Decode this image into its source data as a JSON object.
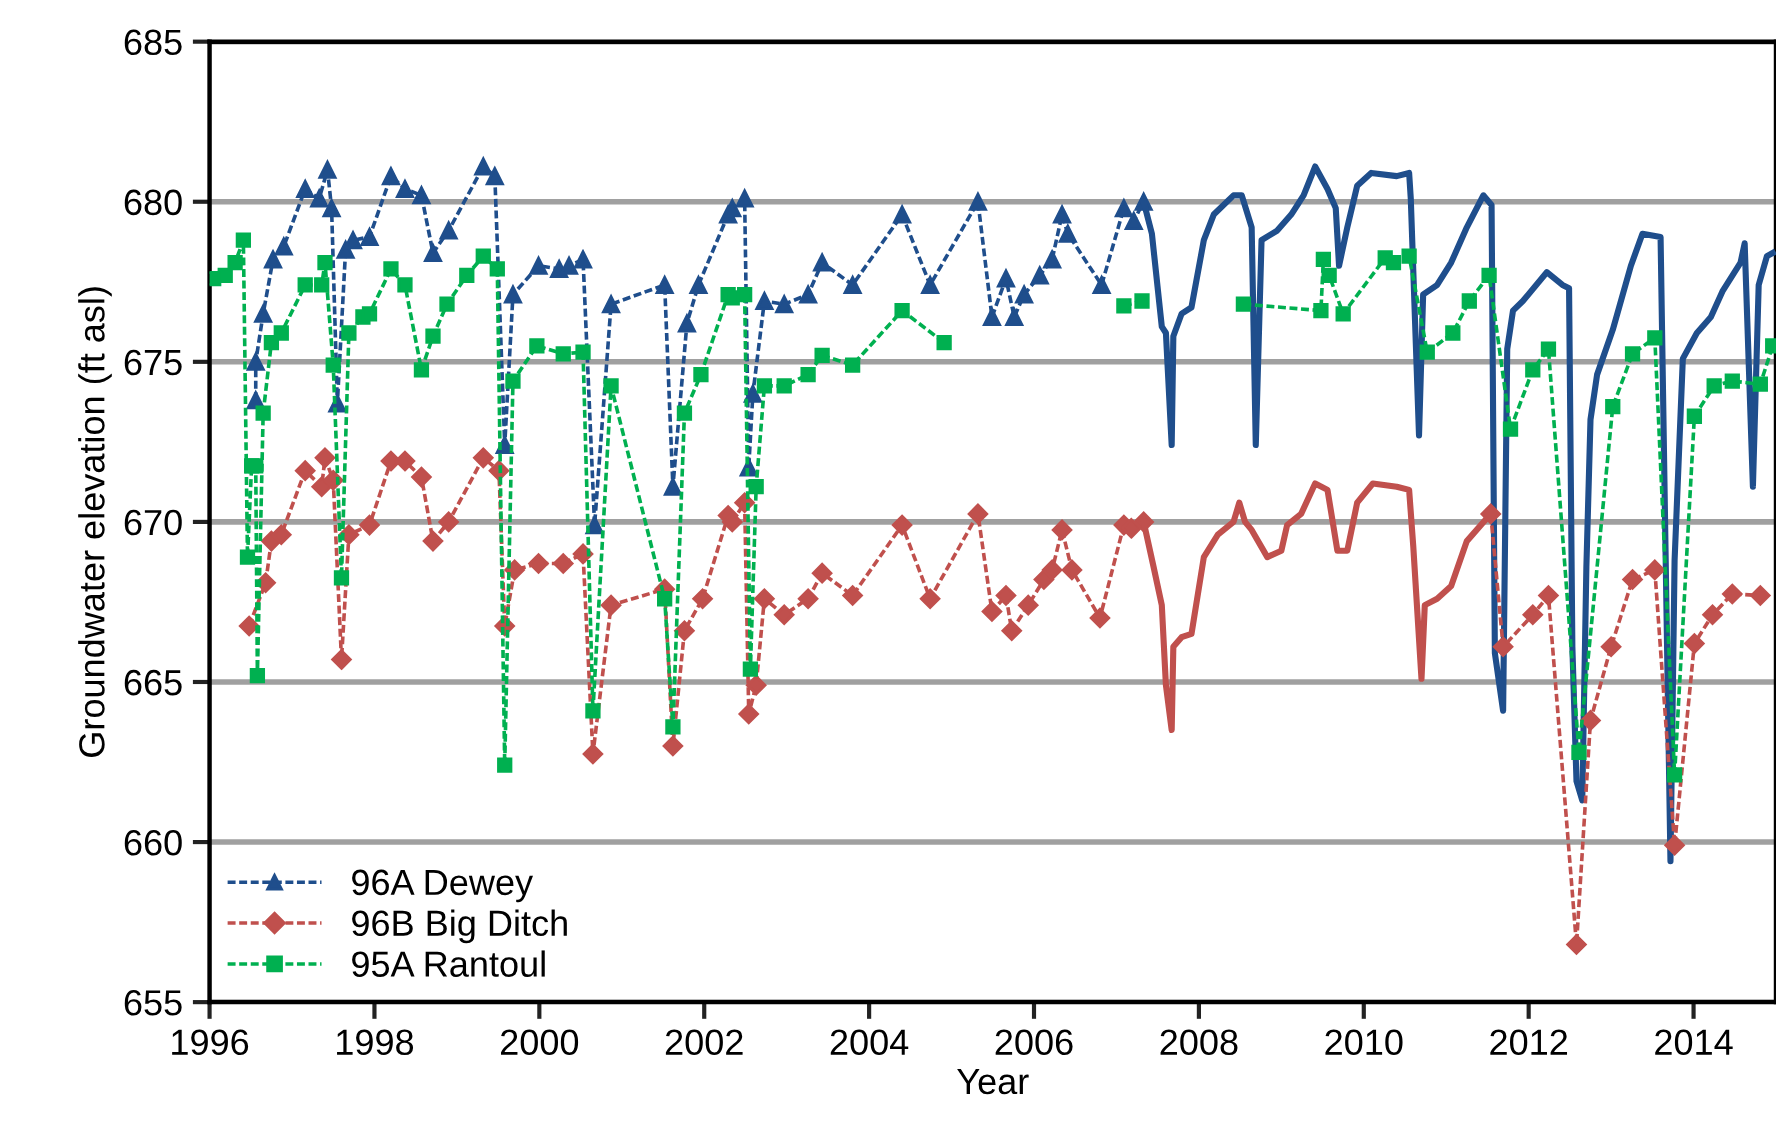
{
  "chart_data": {
    "type": "line",
    "xlabel": "Year",
    "ylabel": "Groundwater elevation (ft asl)",
    "xlim": [
      1996,
      2015
    ],
    "xticks": [
      1996,
      1998,
      2000,
      2002,
      2004,
      2006,
      2008,
      2010,
      2012,
      2014
    ],
    "ylim": [
      655,
      685
    ],
    "yticks": [
      655,
      660,
      665,
      670,
      675,
      680,
      685
    ],
    "grid": "y",
    "legend": "bottom left",
    "series": [
      {
        "name": "96A Dewey",
        "color": "#1f4e8c",
        "line_style": "dashed",
        "marker": "triangle",
        "x": [
          1996.56,
          1996.56,
          1996.65,
          1996.77,
          1996.9,
          1997.16,
          1997.33,
          1997.43,
          1997.48,
          1997.55,
          1997.65,
          1997.74,
          1997.94,
          1998.2,
          1998.37,
          1998.57,
          1998.71,
          1998.9,
          1999.32,
          1999.46,
          1999.58,
          1999.68,
          1999.99,
          2000.24,
          2000.36,
          2000.53,
          2000.67,
          2000.87,
          2001.52,
          2001.62,
          2001.79,
          2001.93,
          2002.29,
          2002.34,
          2002.49,
          2002.54,
          2002.59,
          2002.73,
          2002.97,
          2003.26,
          2003.43,
          2003.8,
          2004.4,
          2004.74,
          2005.32,
          2005.49,
          2005.66,
          2005.76,
          2005.88,
          2006.07,
          2006.22,
          2006.34,
          2006.41,
          2006.82,
          2007.09,
          2007.21,
          2007.33
        ],
        "values": [
          673.8,
          675,
          676.5,
          678.2,
          678.6,
          680.4,
          680.1,
          681,
          679.8,
          673.7,
          678.5,
          678.8,
          678.9,
          680.8,
          680.4,
          680.2,
          678.4,
          679.1,
          681.1,
          680.8,
          672.4,
          677.1,
          678,
          677.9,
          678,
          678.2,
          669.9,
          676.8,
          677.4,
          671.1,
          676.2,
          677.4,
          679.6,
          679.8,
          680.1,
          671.7,
          674,
          676.9,
          676.8,
          677.1,
          678.1,
          677.4,
          679.6,
          677.4,
          680,
          676.4,
          677.6,
          676.4,
          677.1,
          677.7,
          678.2,
          679.6,
          679,
          677.4,
          679.8,
          679.4,
          680
        ]
      },
      {
        "color": "#1f4e8c",
        "line_style": "solid",
        "marker": "none",
        "x": [
          2007.33,
          2007.43,
          2007.55,
          2007.6,
          2007.67,
          2007.69,
          2007.79,
          2007.91,
          2008.06,
          2008.18,
          2008.42,
          2008.52,
          2008.64,
          2008.69,
          2008.76,
          2008.95,
          2009.12,
          2009.27,
          2009.41,
          2009.56,
          2009.66,
          2009.7,
          2009.8,
          2009.92,
          2010.09,
          2010.4,
          2010.55,
          2010.57,
          2010.67,
          2010.72,
          2010.89,
          2011.06,
          2011.25,
          2011.45,
          2011.55,
          2011.59,
          2011.69,
          2011.74,
          2011.81,
          2011.93,
          2012.22,
          2012.41,
          2012.49,
          2012.53,
          2012.58,
          2012.65,
          2012.7,
          2012.75,
          2012.83,
          2013.02,
          2013.24,
          2013.38,
          2013.6,
          2013.63,
          2013.72,
          2013.77,
          2013.87,
          2014.04,
          2014.21,
          2014.35,
          2014.57,
          2014.62,
          2014.72,
          2014.79,
          2014.89,
          2014.96
        ],
        "values": [
          680,
          679,
          676.1,
          675.9,
          672.4,
          675.8,
          676.5,
          676.7,
          678.8,
          679.6,
          680.2,
          680.2,
          679.2,
          672.4,
          678.8,
          679.1,
          679.6,
          680.2,
          681.1,
          680.4,
          679.8,
          678,
          679.2,
          680.5,
          680.9,
          680.8,
          680.9,
          680.1,
          672.7,
          677.1,
          677.4,
          678.1,
          679.2,
          680.2,
          679.9,
          665.9,
          664.1,
          675.4,
          676.6,
          676.9,
          677.8,
          677.4,
          677.3,
          666.1,
          661.9,
          661.3,
          668.6,
          673.2,
          674.6,
          676,
          678,
          679,
          678.9,
          674,
          659.4,
          668.8,
          675.1,
          675.9,
          676.4,
          677.2,
          678.1,
          678.7,
          671.1,
          677.4,
          678.3,
          678.4
        ]
      },
      {
        "name": "96B Big Ditch",
        "color": "#c0504d",
        "line_style": "dashed",
        "marker": "diamond",
        "x": [
          1996.48,
          1996.68,
          1996.75,
          1996.87,
          1997.16,
          1997.36,
          1997.4,
          1997.5,
          1997.6,
          1997.69,
          1997.94,
          1998.2,
          1998.37,
          1998.57,
          1998.71,
          1998.9,
          1999.32,
          1999.51,
          1999.58,
          1999.7,
          1999.99,
          2000.29,
          2000.53,
          2000.65,
          2000.87,
          2001.52,
          2001.62,
          2001.76,
          2001.98,
          2002.29,
          2002.34,
          2002.49,
          2002.54,
          2002.63,
          2002.73,
          2002.97,
          2003.26,
          2003.43,
          2003.8,
          2004.4,
          2004.74,
          2005.32,
          2005.49,
          2005.66,
          2005.73,
          2005.93,
          2006.12,
          2006.22,
          2006.34,
          2006.46,
          2006.8,
          2007.09,
          2007.18,
          2007.33
        ],
        "values": [
          666.75,
          668.1,
          669.4,
          669.6,
          671.6,
          671.1,
          672,
          671.3,
          665.7,
          669.6,
          669.9,
          671.9,
          671.9,
          671.4,
          669.4,
          670,
          672,
          671.6,
          666.75,
          668.5,
          668.7,
          668.7,
          669,
          662.75,
          667.4,
          667.9,
          663,
          666.6,
          667.6,
          670.2,
          670,
          670.6,
          664,
          664.9,
          667.6,
          667.1,
          667.6,
          668.4,
          667.7,
          669.9,
          667.6,
          670.25,
          667.2,
          667.7,
          666.6,
          667.4,
          668.2,
          668.5,
          669.75,
          668.5,
          667,
          669.9,
          669.8,
          670
        ]
      },
      {
        "color": "#c0504d",
        "line_style": "solid",
        "marker": "none",
        "x": [
          2007.33,
          2007.45,
          2007.55,
          2007.6,
          2007.67,
          2007.69,
          2007.79,
          2007.91,
          2008.06,
          2008.23,
          2008.42,
          2008.49,
          2008.56,
          2008.64,
          2008.83,
          2009.0,
          2009.07,
          2009.24,
          2009.41,
          2009.56,
          2009.68,
          2009.8,
          2009.92,
          2010.11,
          2010.4,
          2010.55,
          2010.6,
          2010.7,
          2010.74,
          2010.89,
          2011.06,
          2011.25,
          2011.54
        ],
        "values": [
          670,
          668.6,
          667.4,
          664.9,
          663.5,
          666.1,
          666.4,
          666.5,
          668.9,
          669.6,
          670,
          670.6,
          670,
          669.75,
          668.9,
          669.1,
          669.9,
          670.25,
          671.2,
          671,
          669.1,
          669.1,
          670.6,
          671.2,
          671.1,
          671,
          669.25,
          665.1,
          667.4,
          667.6,
          668,
          669.4,
          670.25
        ]
      },
      {
        "color": "#c0504d",
        "line_style": "dashed",
        "marker": "diamond",
        "x": [
          2011.54,
          2011.69,
          2012.05,
          2012.24,
          2012.58,
          2012.75,
          2013.0,
          2013.26,
          2013.53,
          2013.77,
          2014.01,
          2014.23,
          2014.47,
          2014.81
        ],
        "values": [
          670.25,
          666.1,
          667.1,
          667.7,
          656.8,
          663.8,
          666.1,
          668.2,
          668.5,
          659.9,
          666.2,
          667.1,
          667.75,
          667.7
        ]
      },
      {
        "name": "95A Rantoul",
        "color": "#00b050",
        "line_style": "dashed",
        "marker": "square",
        "x": [
          1996.05,
          1996.19,
          1996.31,
          1996.41,
          1996.46,
          1996.51,
          1996.56,
          1996.58,
          1996.65,
          1996.75,
          1996.87,
          1997.16,
          1997.36,
          1997.4,
          1997.5,
          1997.6,
          1997.69,
          1997.86,
          1997.94,
          1998.2,
          1998.37,
          1998.57,
          1998.71,
          1998.88,
          1999.12,
          1999.32,
          1999.49,
          1999.58,
          1999.68,
          1999.97,
          2000.29,
          2000.53,
          2000.65,
          2000.87,
          2001.52,
          2001.62,
          2001.76,
          2001.96,
          2002.29,
          2002.34,
          2002.49,
          2002.56,
          2002.63,
          2002.73,
          2002.97,
          2003.26,
          2003.43,
          2003.8,
          2004.4,
          2004.91,
          2006.0,
          2007.09,
          2007.31,
          2008.0,
          2008.54,
          2009.48,
          2009.51,
          2009.58,
          2009.75,
          2010.26,
          2010.36,
          2010.55,
          2010.77,
          2011.08,
          2011.28,
          2011.52,
          2011.78,
          2012.05,
          2012.24,
          2012.61,
          2013.02,
          2013.26,
          2013.53,
          2013.77,
          2014.01,
          2014.25,
          2014.47,
          2014.81,
          2014.96
        ],
        "values": [
          677.6,
          677.7,
          678.1,
          678.8,
          668.9,
          671.75,
          671.75,
          665.2,
          673.4,
          675.6,
          675.9,
          677.4,
          677.4,
          678.1,
          674.9,
          668.25,
          675.9,
          676.4,
          676.5,
          677.9,
          677.4,
          674.75,
          675.8,
          676.8,
          677.7,
          678.3,
          677.9,
          662.4,
          674.4,
          675.5,
          675.25,
          675.3,
          664.1,
          674.25,
          667.6,
          663.6,
          673.4,
          674.6,
          677.1,
          677,
          677.1,
          665.4,
          671.1,
          674.25,
          674.25,
          674.6,
          675.2,
          674.9,
          676.6,
          675.6,
          null,
          676.75,
          676.9,
          null,
          676.8,
          676.6,
          678.2,
          677.7,
          676.5,
          678.25,
          678.1,
          678.3,
          675.3,
          675.9,
          676.9,
          677.7,
          672.9,
          674.75,
          675.4,
          662.8,
          673.6,
          675.25,
          675.75,
          662.1,
          673.3,
          674.25,
          674.4,
          674.3,
          675.5
        ]
      }
    ]
  }
}
